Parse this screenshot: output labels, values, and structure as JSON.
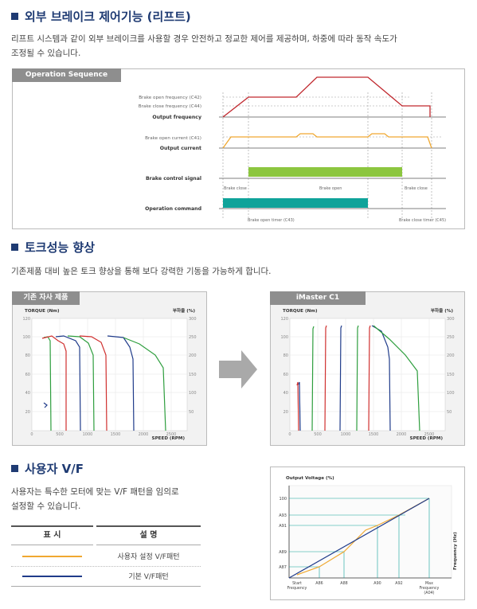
{
  "section1": {
    "title": "외부 브레이크 제어기능 (리프트)",
    "desc_line1": "리프트 시스템과 같이 외부 브레이크를 사용할 경우 안전하고 정교한 제어를 제공하며, 하중에 따라 동작 속도가",
    "desc_line2": "조정될 수 있습니다.",
    "tab": "Operation Sequence",
    "labels": {
      "brake_open_freq": "Brake open frequency (C42)",
      "brake_close_freq": "Brake close frequency (C44)",
      "output_freq": "Output frequency",
      "brake_open_current": "Brake open current (C41)",
      "output_current": "Output current",
      "brake_control": "Brake control signal",
      "operation_command": "Operation command",
      "brake_close_1": "Brake close",
      "brake_open": "Brake open",
      "brake_close_2": "Brake close",
      "open_timer": "Brake open timer (C43)",
      "close_timer": "Brake close timer (C45)"
    },
    "colors": {
      "frequency": "#c0272d",
      "current": "#f0a830",
      "brake": "#8cc63f",
      "command": "#0fa39a"
    }
  },
  "section2": {
    "title": "토크성능 향상",
    "desc": "기존제품 대비 높은 토크 향상을 통해 보다 강력한 기동을 가능하게 합니다.",
    "left_tab": "기존 자사 제품",
    "right_tab": "iMaster C1",
    "torque_label": "TORQUE (Nm)",
    "load_label": "부하율 (%)",
    "speed_label": "SPEED (RPM)",
    "y_ticks": [
      "120",
      "100",
      "80",
      "60",
      "40",
      "20"
    ],
    "y2_ticks": [
      "300",
      "250",
      "200",
      "150",
      "100",
      "50"
    ],
    "x_ticks": [
      "0",
      "500",
      "1000",
      "1500",
      "2000",
      "2500"
    ]
  },
  "section3": {
    "title": "사용자 V/F",
    "desc_line1": "사용자는 특수한 모터에 맞는 V/F 패턴을 임의로",
    "desc_line2": "설정할 수 있습니다.",
    "table_head": [
      "표 시",
      "설 명"
    ],
    "rows": [
      {
        "desc": "사용자 설정 V/F패턴",
        "color": "#f0a830"
      },
      {
        "desc": "기본 V/F패턴",
        "color": "#1f3b8a"
      }
    ],
    "chart": {
      "ylabel": "Output Voltage (%)",
      "xlabel": "Frequency (Hz)",
      "y_ticks": [
        "100",
        "A93",
        "A91",
        "A89",
        "A87"
      ],
      "x_ticks": [
        "Start\nFrequency",
        "A86",
        "A88",
        "A90",
        "A92",
        "Max\nFrequency\n(A04)"
      ]
    }
  }
}
